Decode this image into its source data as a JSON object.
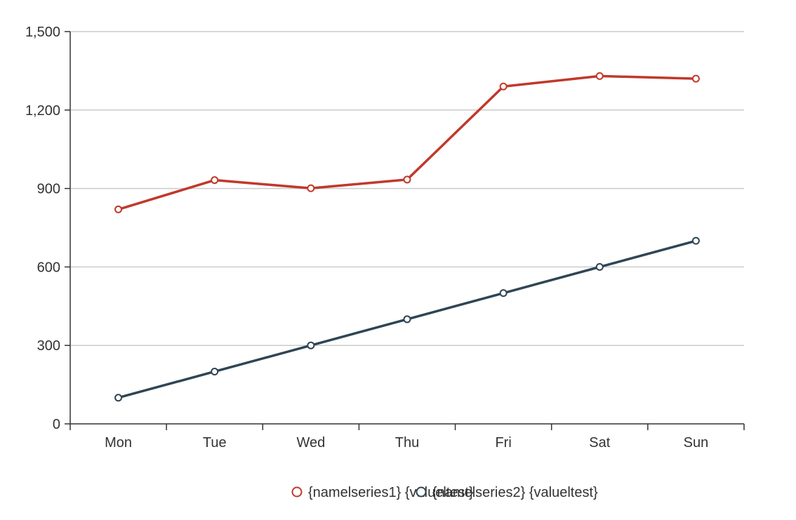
{
  "chart_data": {
    "type": "line",
    "title": "",
    "xlabel": "",
    "ylabel": "",
    "categories": [
      "Mon",
      "Tue",
      "Wed",
      "Thu",
      "Fri",
      "Sat",
      "Sun"
    ],
    "y_ticks": [
      "0",
      "300",
      "600",
      "900",
      "1,200",
      "1,500"
    ],
    "y_tick_values": [
      0,
      300,
      600,
      900,
      1200,
      1500
    ],
    "ylim": [
      0,
      1500
    ],
    "grid": true,
    "legend_position": "bottom-center",
    "series": [
      {
        "name": "{namelseries1} {valueltest}",
        "color": "#c0392b",
        "values": [
          820,
          932,
          901,
          934,
          1290,
          1330,
          1320
        ]
      },
      {
        "name": "{namelseries2} {valueltest}",
        "color": "#2f4554",
        "values": [
          100,
          200,
          300,
          400,
          500,
          600,
          700
        ]
      }
    ]
  }
}
